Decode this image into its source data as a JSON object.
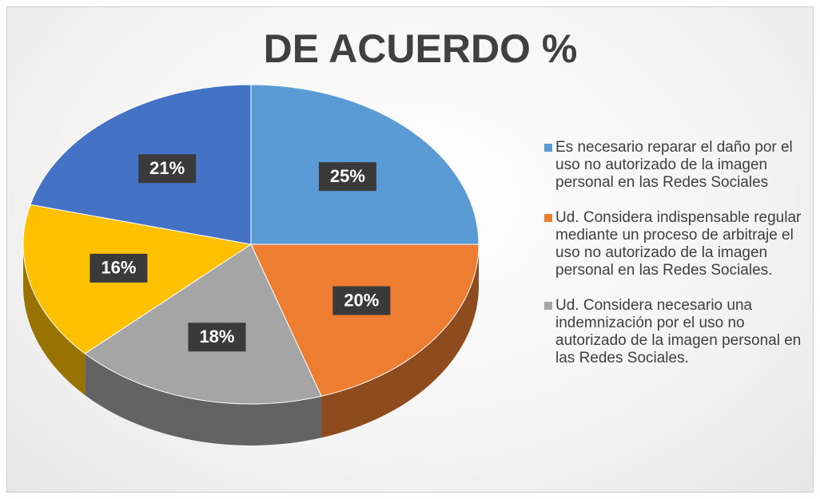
{
  "chart_data": {
    "type": "pie",
    "title": "DE ACUERDO %",
    "categories": [
      "Es necesario reparar el daño por el uso no autorizado de la imagen personal en las Redes Sociales",
      "Ud. Considera indispensable regular mediante un proceso de arbitraje el uso no autorizado de la imagen personal en las Redes Sociales.",
      "Ud. Considera necesario una indemnización por el uso no autorizado de la imagen personal en las Redes Sociales.",
      null,
      null
    ],
    "values": [
      25,
      20,
      18,
      16,
      21
    ],
    "value_labels": [
      "25%",
      "20%",
      "18%",
      "16%",
      "21%"
    ],
    "colors": [
      "#5b9bd5",
      "#ed7d31",
      "#a5a5a5",
      "#ffc000",
      "#4472c4"
    ],
    "legend": "right"
  }
}
